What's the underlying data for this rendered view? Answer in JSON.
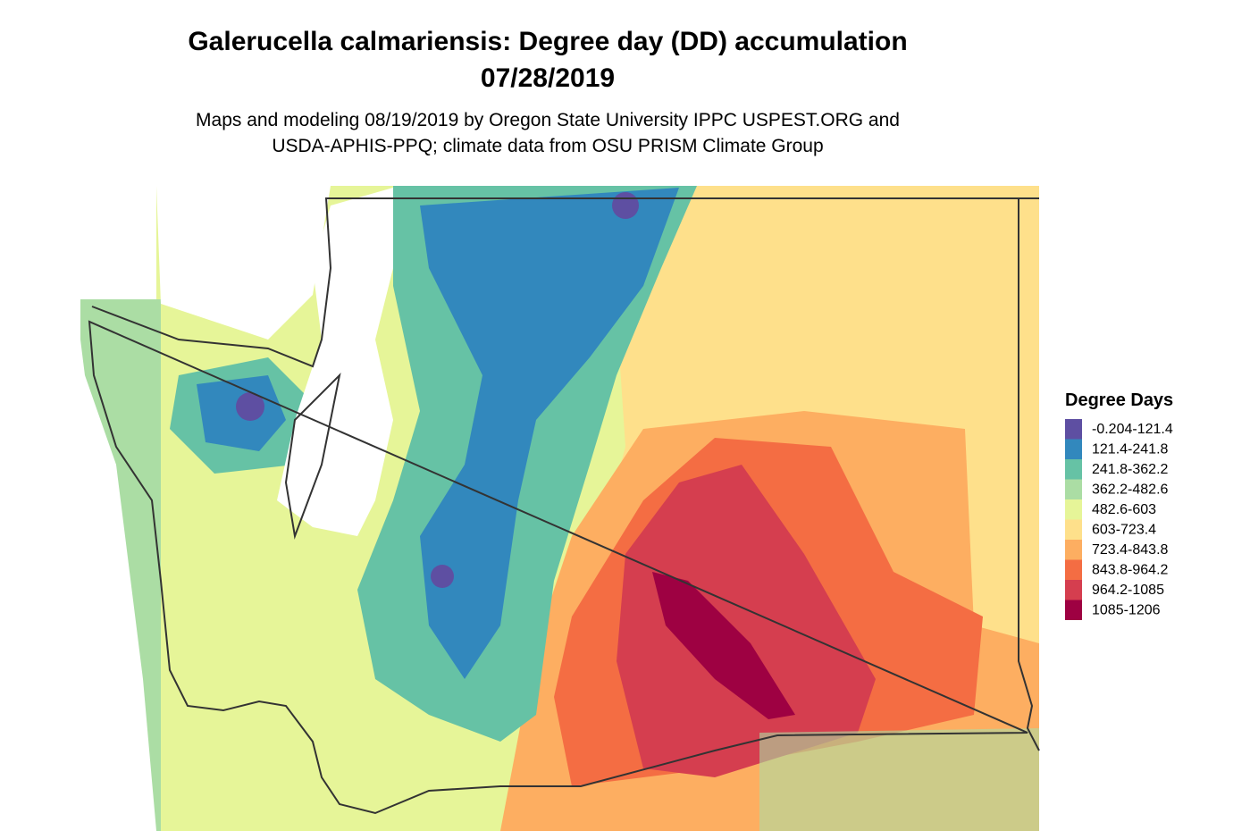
{
  "title": [
    "Galerucella calmariensis: Degree day (DD) accumulation",
    "07/28/2019"
  ],
  "subtitle": [
    "Maps and modeling 08/19/2019 by Oregon State University IPPC USPEST.ORG and",
    "USDA-APHIS-PPQ; climate data from OSU PRISM Climate Group"
  ],
  "legend": {
    "title": "Degree Days",
    "items": [
      {
        "label": "-0.204-121.4",
        "color": "#5e4fa2"
      },
      {
        "label": "121.4-241.8",
        "color": "#3288bd"
      },
      {
        "label": "241.8-362.2",
        "color": "#66c2a5"
      },
      {
        "label": "362.2-482.6",
        "color": "#abdda4"
      },
      {
        "label": "482.6-603",
        "color": "#e6f598"
      },
      {
        "label": "603-723.4",
        "color": "#fee08b"
      },
      {
        "label": "723.4-843.8",
        "color": "#fdae61"
      },
      {
        "label": "843.8-964.2",
        "color": "#f46d43"
      },
      {
        "label": "964.2-1085",
        "color": "#d53e4f"
      },
      {
        "label": "1085-1206",
        "color": "#9e0142"
      }
    ]
  }
}
